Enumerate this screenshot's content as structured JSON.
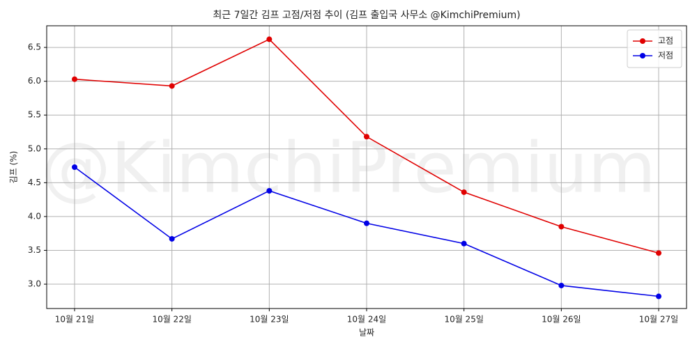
{
  "chart_data": {
    "type": "line",
    "title": "최근 7일간 김프 고점/저점 추이 (김프 출입국 사무소 @KimchiPremium)",
    "watermark": "@KimchiPremium",
    "x_label": "날짜",
    "y_label": "김프 (%)",
    "categories": [
      "10월 21일",
      "10월 22일",
      "10월 23일",
      "10월 24일",
      "10월 25일",
      "10월 26일",
      "10월 27일"
    ],
    "series": [
      {
        "name": "고점",
        "color": "#e00000",
        "values": [
          6.03,
          5.93,
          6.62,
          5.18,
          4.36,
          3.85,
          3.46
        ]
      },
      {
        "name": "저점",
        "color": "#0000e6",
        "values": [
          4.73,
          3.67,
          4.38,
          3.9,
          3.6,
          2.98,
          2.82
        ]
      }
    ],
    "ylim": [
      2.64,
      6.82
    ],
    "yticks": [
      {
        "value": 3,
        "label": "3.0"
      },
      3.5,
      {
        "value": 4,
        "label": "4.0"
      },
      4.5,
      {
        "value": 5,
        "label": "5.0"
      },
      5.5,
      {
        "value": 6,
        "label": "6.0"
      },
      6.5
    ],
    "grid": true,
    "legend": "upper right"
  }
}
